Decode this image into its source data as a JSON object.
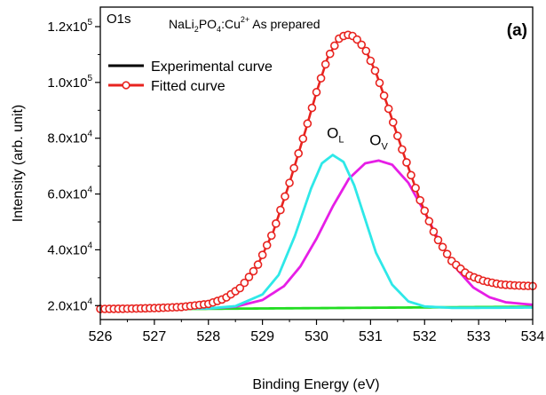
{
  "chart_data": {
    "type": "line",
    "panel_label": "(a)",
    "core_level": "O1s",
    "sample": {
      "base": "NaLi",
      "sub1": "2",
      "mid": "PO",
      "sub2": "4",
      "tail": ":Cu",
      "sup": "2+",
      "suffix": " As prepared"
    },
    "xlabel": "Binding Energy (eV)",
    "ylabel": "Intensity (arb. unit)",
    "xlim": [
      526,
      534
    ],
    "ylim": [
      15000,
      127000
    ],
    "x_reversed": false,
    "x_ticks": [
      "526",
      "527",
      "528",
      "529",
      "530",
      "531",
      "532",
      "533",
      "534"
    ],
    "y_ticks": [
      {
        "value": 20000,
        "mantissa": "2.0x10",
        "exp": "4"
      },
      {
        "value": 40000,
        "mantissa": "4.0x10",
        "exp": "4"
      },
      {
        "value": 60000,
        "mantissa": "6.0x10",
        "exp": "4"
      },
      {
        "value": 80000,
        "mantissa": "8.0x10",
        "exp": "4"
      },
      {
        "value": 100000,
        "mantissa": "1.0x10",
        "exp": "5"
      },
      {
        "value": 120000,
        "mantissa": "1.2x10",
        "exp": "5"
      }
    ],
    "legend": {
      "placement": "top-left",
      "entries": [
        {
          "label": "Experimental curve",
          "color": "#000000",
          "marker": "none"
        },
        {
          "label": "Fitted curve",
          "color": "#e8231f",
          "marker": "open-circle"
        }
      ]
    },
    "peak_labels": [
      {
        "main": "O",
        "sub": "L",
        "x": 530.35,
        "y": 80000
      },
      {
        "main": "O",
        "sub": "V",
        "x": 531.15,
        "y": 77500
      }
    ],
    "series": [
      {
        "name": "Experimental curve",
        "color": "#000000",
        "x": [
          526.0,
          526.5,
          527.0,
          527.5,
          528.0,
          528.3,
          528.6,
          528.9,
          529.2,
          529.5,
          529.8,
          530.0,
          530.2,
          530.4,
          530.55,
          530.7,
          530.9,
          531.1,
          531.3,
          531.6,
          531.9,
          532.2,
          532.5,
          532.8,
          533.1,
          533.4,
          533.7,
          534.0
        ],
        "y": [
          18800,
          18900,
          19100,
          19500,
          20600,
          22500,
          26500,
          34000,
          46500,
          64000,
          83000,
          96500,
          108500,
          115500,
          117200,
          116500,
          112000,
          103500,
          92500,
          75000,
          58500,
          45000,
          36000,
          31000,
          28800,
          27600,
          27200,
          27000
        ]
      },
      {
        "name": "Fitted curve",
        "color": "#e8231f",
        "x": [
          526.0,
          526.5,
          527.0,
          527.5,
          528.0,
          528.3,
          528.6,
          528.9,
          529.2,
          529.5,
          529.8,
          530.0,
          530.2,
          530.4,
          530.55,
          530.7,
          530.9,
          531.1,
          531.3,
          531.6,
          531.9,
          532.2,
          532.5,
          532.8,
          533.1,
          533.4,
          533.7,
          534.0
        ],
        "y": [
          18800,
          18900,
          19100,
          19500,
          20600,
          22500,
          26500,
          34000,
          46500,
          64000,
          83000,
          96500,
          108500,
          115500,
          117200,
          116500,
          112000,
          103500,
          92500,
          75000,
          58500,
          45000,
          36000,
          31000,
          28800,
          27600,
          27200,
          27000
        ]
      },
      {
        "name": "O_L component",
        "color": "#2ee8e8",
        "x": [
          526.0,
          527.0,
          528.0,
          528.5,
          529.0,
          529.3,
          529.6,
          529.9,
          530.1,
          530.3,
          530.5,
          530.7,
          530.9,
          531.1,
          531.4,
          531.7,
          532.0,
          532.5,
          533.0,
          534.0
        ],
        "y": [
          18800,
          18800,
          19000,
          19800,
          24000,
          31000,
          45000,
          62000,
          71000,
          74000,
          71500,
          63000,
          51000,
          39000,
          27500,
          21500,
          19700,
          19200,
          19200,
          19300
        ]
      },
      {
        "name": "O_V component",
        "color": "#e61ee6",
        "x": [
          526.0,
          527.0,
          528.0,
          528.5,
          529.0,
          529.4,
          529.7,
          530.0,
          530.3,
          530.6,
          530.9,
          531.15,
          531.4,
          531.7,
          532.0,
          532.3,
          532.6,
          532.9,
          533.2,
          533.5,
          534.0
        ],
        "y": [
          18800,
          18800,
          19000,
          19600,
          22000,
          27000,
          34000,
          44000,
          55500,
          65500,
          71000,
          72000,
          70500,
          64000,
          53500,
          42000,
          33000,
          26500,
          23000,
          21200,
          20300
        ]
      },
      {
        "name": "Background",
        "color": "#22dd22",
        "x": [
          526.0,
          534.0
        ],
        "y": [
          18600,
          19600
        ]
      }
    ]
  }
}
